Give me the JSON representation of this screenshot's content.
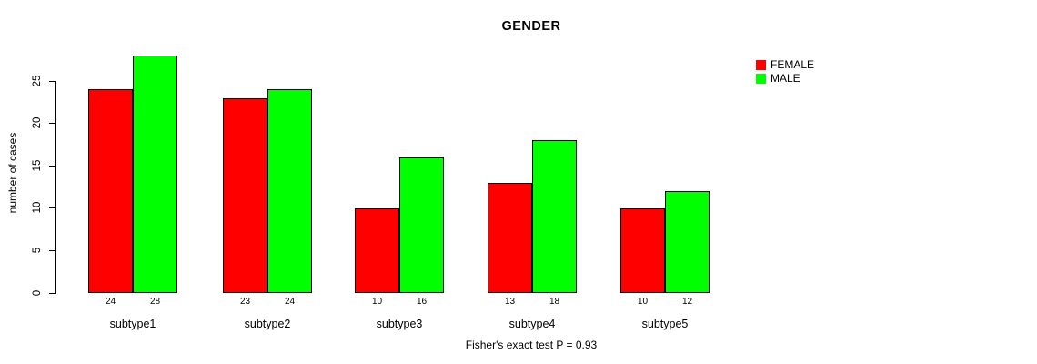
{
  "title": "GENDER",
  "y_axis": {
    "label": "number of cases",
    "ticks": [
      "0",
      "5",
      "10",
      "15",
      "20",
      "25"
    ]
  },
  "legend": {
    "items": [
      {
        "label": "FEMALE",
        "color": "#FF0000"
      },
      {
        "label": "MALE",
        "color": "#00FF00"
      }
    ]
  },
  "footer": "Fisher's exact test P = 0.93",
  "chart_data": {
    "type": "bar",
    "title": "GENDER",
    "categories": [
      "subtype1",
      "subtype2",
      "subtype3",
      "subtype4",
      "subtype5"
    ],
    "series": [
      {
        "name": "FEMALE",
        "color": "#FF0000",
        "values": [
          24,
          23,
          10,
          13,
          10
        ]
      },
      {
        "name": "MALE",
        "color": "#00FF00",
        "values": [
          28,
          24,
          16,
          18,
          12
        ]
      }
    ],
    "bar_value_labels": [
      [
        24,
        28
      ],
      [
        23,
        24
      ],
      [
        10,
        16
      ],
      [
        13,
        18
      ],
      [
        10,
        12
      ]
    ],
    "xlabel": "",
    "ylabel": "number of cases",
    "ylim": [
      0,
      28
    ],
    "yticks": [
      0,
      5,
      10,
      15,
      20,
      25
    ],
    "grid": false,
    "legend_position": "top-right",
    "annotation": "Fisher's exact test P = 0.93"
  }
}
